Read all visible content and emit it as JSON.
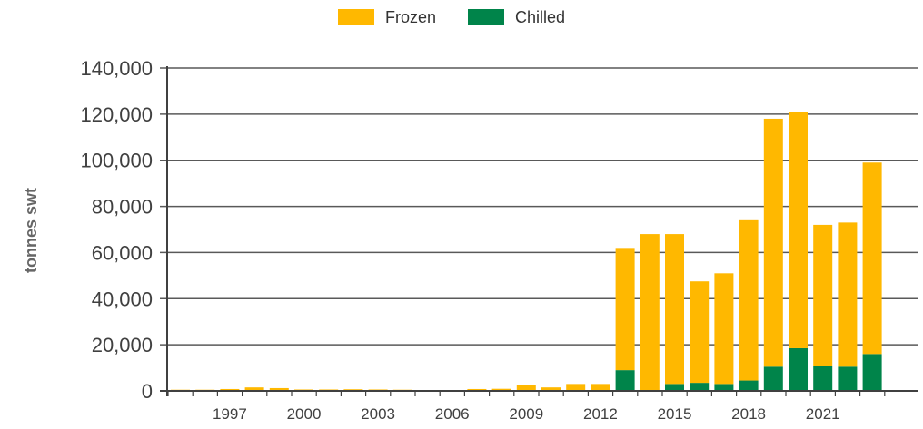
{
  "chart_data": {
    "type": "bar",
    "stacked": true,
    "title": "",
    "xlabel": "",
    "ylabel": "tonnes swt",
    "ylim": [
      0,
      140000
    ],
    "yticks": [
      0,
      20000,
      40000,
      60000,
      80000,
      100000,
      120000,
      140000
    ],
    "ytick_labels": [
      "0",
      "20,000",
      "40,000",
      "60,000",
      "80,000",
      "100,000",
      "120,000",
      "140,000"
    ],
    "grid": true,
    "legend_position": "top-center",
    "categories": [
      "1995",
      "1996",
      "1997",
      "1998",
      "1999",
      "2000",
      "2001",
      "2002",
      "2003",
      "2004",
      "2005",
      "2006",
      "2007",
      "2008",
      "2009",
      "2010",
      "2011",
      "2012",
      "2013",
      "2014",
      "2015",
      "2016",
      "2017",
      "2018",
      "2019",
      "2020",
      "2021",
      "2022",
      "2023"
    ],
    "xtick_labels": [
      "1997",
      "2000",
      "2003",
      "2006",
      "2009",
      "2012",
      "2015",
      "2018",
      "2021"
    ],
    "series": [
      {
        "name": "Chilled",
        "color": "#00844a",
        "values": [
          0,
          0,
          0,
          0,
          0,
          0,
          0,
          0,
          0,
          0,
          0,
          0,
          0,
          0,
          0,
          0,
          0,
          0,
          9000,
          0,
          3000,
          3500,
          3000,
          4500,
          10500,
          18500,
          11000,
          10500,
          16000
        ]
      },
      {
        "name": "Frozen",
        "color": "#ffb800",
        "values": [
          500,
          500,
          800,
          1500,
          1200,
          600,
          600,
          700,
          600,
          500,
          300,
          200,
          800,
          900,
          2500,
          1500,
          3000,
          3000,
          53000,
          68000,
          65000,
          44000,
          48000,
          69500,
          107500,
          102500,
          61000,
          62500,
          83000
        ]
      }
    ]
  }
}
